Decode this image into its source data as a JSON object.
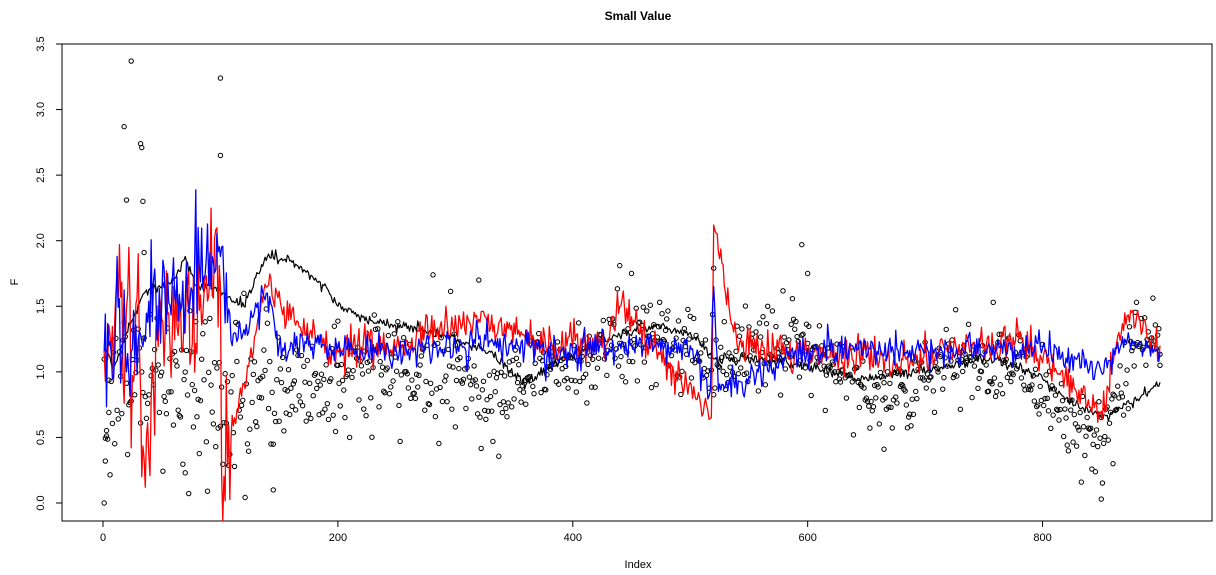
{
  "chart_data": {
    "type": "scatter",
    "title": "Small Value",
    "xlabel": "Index",
    "ylabel": "F",
    "xlim": [
      0,
      900
    ],
    "ylim": [
      0,
      3.5
    ],
    "x_ticks": [
      0,
      200,
      400,
      600,
      800
    ],
    "y_ticks": [
      0.0,
      0.5,
      1.0,
      1.5,
      2.0,
      2.5,
      3.0,
      3.5
    ],
    "x_tick_labels": [
      "0",
      "200",
      "400",
      "600",
      "800"
    ],
    "y_tick_labels": [
      "0.0",
      "0.5",
      "1.0",
      "1.5",
      "2.0",
      "2.5",
      "3.0",
      "3.5"
    ],
    "grid": false,
    "legend": "none",
    "n_points": 900,
    "series": [
      {
        "kind": "points",
        "color": "#000000",
        "key_values": [
          [
            1,
            0.0
          ],
          [
            2,
            0.32
          ],
          [
            3,
            0.51
          ],
          [
            5,
            0.69
          ],
          [
            18,
            2.87
          ],
          [
            20,
            2.31
          ],
          [
            24,
            3.37
          ],
          [
            32,
            2.74
          ],
          [
            33,
            2.71
          ],
          [
            34,
            2.3
          ],
          [
            35,
            1.91
          ],
          [
            70,
            0.23
          ],
          [
            100,
            3.24
          ],
          [
            100,
            2.65
          ],
          [
            145,
            0.1
          ],
          [
            200,
            1.05
          ],
          [
            300,
            0.58
          ],
          [
            320,
            1.7
          ],
          [
            440,
            1.81
          ],
          [
            450,
            1.75
          ],
          [
            520,
            1.79
          ],
          [
            595,
            1.97
          ],
          [
            600,
            1.75
          ],
          [
            665,
            0.41
          ],
          [
            680,
            1.0
          ],
          [
            850,
            0.03
          ],
          [
            860,
            0.3
          ],
          [
            880,
            1.53
          ],
          [
            900,
            1.05
          ]
        ]
      },
      {
        "kind": "line",
        "color": "#000000",
        "key_values": [
          [
            1,
            1.2
          ],
          [
            10,
            1.05
          ],
          [
            20,
            1.3
          ],
          [
            35,
            1.6
          ],
          [
            60,
            1.7
          ],
          [
            70,
            1.88
          ],
          [
            80,
            1.65
          ],
          [
            100,
            1.62
          ],
          [
            120,
            1.5
          ],
          [
            130,
            1.72
          ],
          [
            140,
            1.88
          ],
          [
            160,
            1.85
          ],
          [
            180,
            1.7
          ],
          [
            190,
            1.65
          ],
          [
            200,
            1.5
          ],
          [
            230,
            1.38
          ],
          [
            260,
            1.35
          ],
          [
            300,
            1.25
          ],
          [
            330,
            1.15
          ],
          [
            360,
            0.9
          ],
          [
            380,
            1.05
          ],
          [
            440,
            1.28
          ],
          [
            470,
            1.35
          ],
          [
            500,
            1.3
          ],
          [
            520,
            1.1
          ],
          [
            560,
            1.1
          ],
          [
            600,
            1.05
          ],
          [
            640,
            0.95
          ],
          [
            680,
            0.98
          ],
          [
            720,
            1.05
          ],
          [
            760,
            1.1
          ],
          [
            800,
            0.95
          ],
          [
            820,
            0.8
          ],
          [
            850,
            0.65
          ],
          [
            880,
            0.78
          ],
          [
            900,
            0.92
          ]
        ]
      },
      {
        "kind": "line",
        "color": "#ff0000",
        "key_values": [
          [
            1,
            1.15
          ],
          [
            10,
            1.4
          ],
          [
            14,
            1.97
          ],
          [
            18,
            0.76
          ],
          [
            22,
            1.95
          ],
          [
            24,
            0.42
          ],
          [
            30,
            1.9
          ],
          [
            33,
            0.2
          ],
          [
            50,
            1.4
          ],
          [
            100,
            1.65
          ],
          [
            101,
            0.22
          ],
          [
            140,
            1.65
          ],
          [
            160,
            1.4
          ],
          [
            200,
            1.15
          ],
          [
            250,
            1.2
          ],
          [
            320,
            1.4
          ],
          [
            360,
            1.25
          ],
          [
            430,
            1.25
          ],
          [
            440,
            1.5
          ],
          [
            518,
            0.65
          ],
          [
            520,
            2.12
          ],
          [
            540,
            1.2
          ],
          [
            600,
            1.15
          ],
          [
            680,
            1.1
          ],
          [
            780,
            1.25
          ],
          [
            850,
            0.7
          ],
          [
            870,
            1.45
          ],
          [
            900,
            1.2
          ]
        ]
      },
      {
        "kind": "line",
        "color": "#0000ff",
        "key_values": [
          [
            1,
            1.15
          ],
          [
            8,
            0.95
          ],
          [
            12,
            1.88
          ],
          [
            20,
            1.0
          ],
          [
            30,
            1.25
          ],
          [
            100,
            1.88
          ],
          [
            110,
            1.2
          ],
          [
            140,
            1.6
          ],
          [
            150,
            1.2
          ],
          [
            200,
            1.18
          ],
          [
            250,
            1.15
          ],
          [
            320,
            1.25
          ],
          [
            400,
            1.15
          ],
          [
            500,
            1.2
          ],
          [
            517,
            0.85
          ],
          [
            520,
            1.65
          ],
          [
            524,
            0.85
          ],
          [
            600,
            1.18
          ],
          [
            700,
            1.15
          ],
          [
            800,
            1.18
          ],
          [
            850,
            1.0
          ],
          [
            870,
            1.25
          ],
          [
            900,
            1.15
          ]
        ]
      }
    ]
  }
}
